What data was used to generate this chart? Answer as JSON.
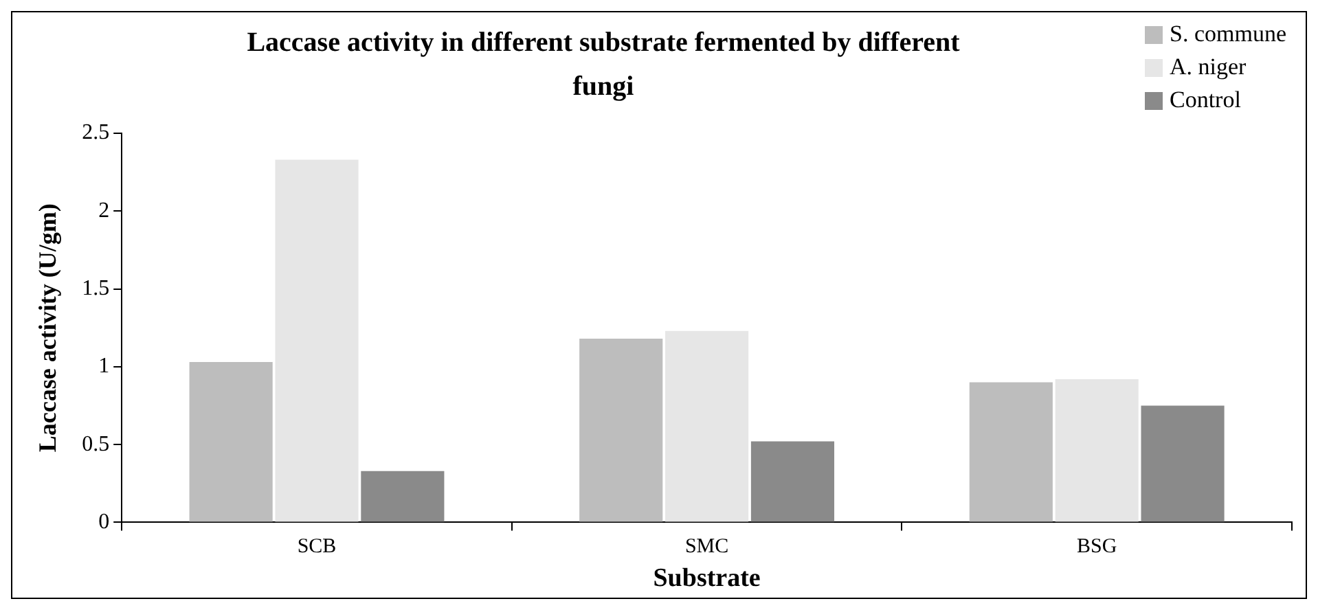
{
  "chart_data": {
    "type": "bar",
    "title": "Laccase activity in different substrate fermented by different fungi",
    "xlabel": "Substrate",
    "ylabel": "Laccase activity (U/gm)",
    "categories": [
      "SCB",
      "SMC",
      "BSG"
    ],
    "series": [
      {
        "name": "S. commune",
        "color": "#bdbdbd",
        "values": [
          1.03,
          1.18,
          0.9
        ]
      },
      {
        "name": "A. niger",
        "color": "#e6e6e6",
        "values": [
          2.33,
          1.23,
          0.92
        ]
      },
      {
        "name": "Control",
        "color": "#8a8a8a",
        "values": [
          0.33,
          0.52,
          0.75
        ]
      }
    ],
    "ylim": [
      0,
      2.5
    ],
    "yticks": [
      0,
      0.5,
      1,
      1.5,
      2,
      2.5
    ],
    "grid": false,
    "legend": "top right"
  }
}
